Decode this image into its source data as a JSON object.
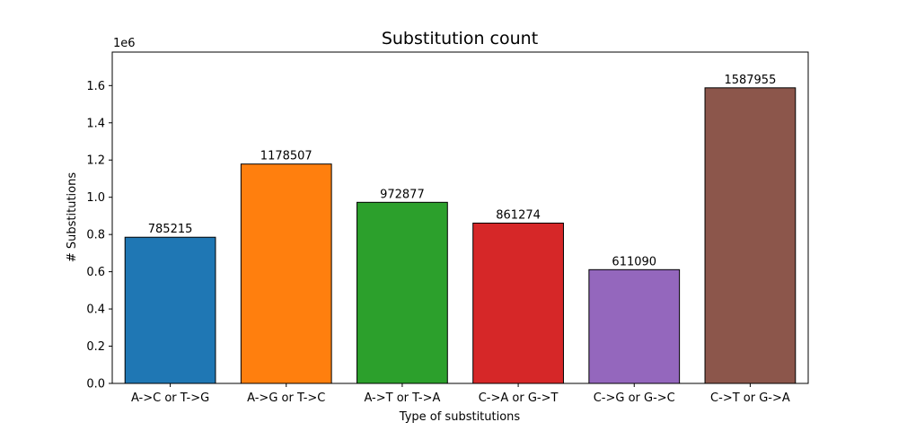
{
  "chart_data": {
    "type": "bar",
    "title": "Substitution count",
    "xlabel": "Type of substitutions",
    "ylabel": "# Substitutions",
    "y_scale_label": "1e6",
    "ylim": [
      0,
      1780000
    ],
    "yticks": [
      0.0,
      0.2,
      0.4,
      0.6,
      0.8,
      1.0,
      1.2,
      1.4,
      1.6
    ],
    "ytick_labels": [
      "0.0",
      "0.2",
      "0.4",
      "0.6",
      "0.8",
      "1.0",
      "1.2",
      "1.4",
      "1.6"
    ],
    "grid": false,
    "categories": [
      "A->C or T->G",
      "A->G or T->C",
      "A->T or T->A",
      "C->A or G->T",
      "C->G or G->C",
      "C->T or G->A"
    ],
    "values": [
      785215,
      1178507,
      972877,
      861274,
      611090,
      1587955
    ],
    "value_labels": [
      "785215",
      "1178507",
      "972877",
      "861274",
      "611090",
      "1587955"
    ],
    "colors": [
      "#1f77b4",
      "#ff7f0e",
      "#2ca02c",
      "#d62728",
      "#9467bd",
      "#8c564b"
    ],
    "edge_color": "#000000"
  }
}
